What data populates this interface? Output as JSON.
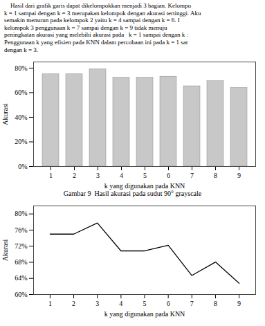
{
  "chart_data": [
    {
      "type": "bar",
      "annotations": [
        "    Hasil dari grafik garis dapat dikelompokkan menjadi 3 bagian. Kelompo",
        "k = 1 sampai dengan k = 3 merupakan kelompok dengan akurasi tertinggi. Aku",
        "semakin menurun pada kelompok 2 yaitu k = 4 sampai dengan k = 6. I",
        "kelompok 3 penggunaan k = 7 sampai dengan k = 9 tidak menuju",
        "peningkatan akurasi yang melebihi akurasi pada   k = 1 sampai dengan k :",
        "Penggunaan k yang efisien pada KNN dalam percobaan ini pada k = 1 sar",
        "dengan k = 3."
      ],
      "title": "Gambar 9  Hasil akurasi pada sudut 90° grayscale",
      "x_label": "k yang digunakan pada KNN",
      "y_label": "Akurasi",
      "categories": [
        1,
        2,
        3,
        4,
        5,
        6,
        7,
        8,
        9
      ],
      "values": [
        0.75,
        0.75,
        0.7917,
        0.7222,
        0.7222,
        0.7306,
        0.6528,
        0.6944,
        0.6389
      ],
      "color": "#c8c8c8",
      "ylim": [
        0,
        0.85
      ],
      "yticks": [
        {
          "value": 0.0,
          "label": "0%"
        },
        {
          "value": 0.2,
          "label": "20%"
        },
        {
          "value": 0.4,
          "label": "40%"
        },
        {
          "value": 0.6,
          "label": "60%"
        },
        {
          "value": 0.8,
          "label": "80%"
        }
      ],
      "grid": false
    },
    {
      "type": "line",
      "x_label": "k yang digunakan pada KNN",
      "y_label": "Akurasi",
      "x": [
        1,
        2,
        3,
        4,
        5,
        6,
        7,
        8,
        9
      ],
      "values": [
        0.75,
        0.75,
        0.7778,
        0.7083,
        0.7083,
        0.7222,
        0.6472,
        0.6806,
        0.6278
      ],
      "color": "#000000",
      "xlim": [
        0.3,
        9.7
      ],
      "xticks": [
        1,
        2,
        3,
        4,
        5,
        6,
        7,
        8,
        9
      ],
      "ylim": [
        0.6,
        0.82
      ],
      "yticks": [
        {
          "value": 0.6,
          "label": "60%"
        },
        {
          "value": 0.64,
          "label": "64%"
        },
        {
          "value": 0.68,
          "label": "68%"
        },
        {
          "value": 0.72,
          "label": "72%"
        },
        {
          "value": 0.76,
          "label": "76%"
        },
        {
          "value": 0.8,
          "label": "80%"
        }
      ],
      "grid": false
    }
  ]
}
